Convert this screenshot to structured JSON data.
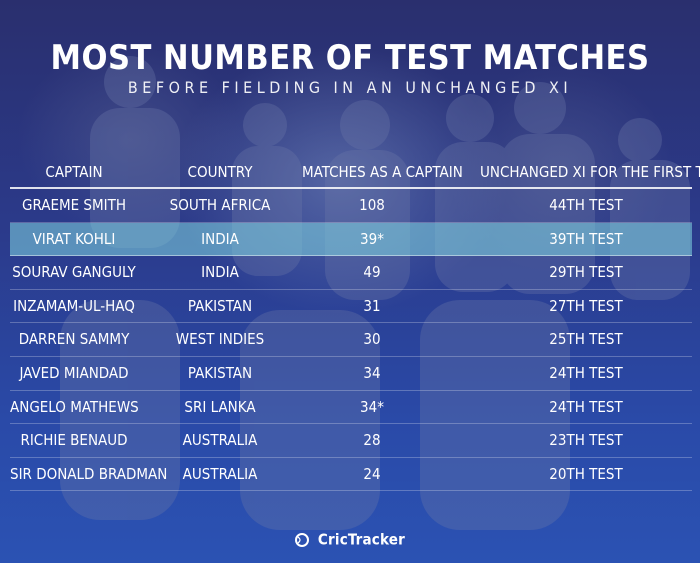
{
  "title": "MOST NUMBER OF TEST MATCHES",
  "subtitle": "BEFORE FIELDING IN AN UNCHANGED XI",
  "columns": [
    "CAPTAIN",
    "COUNTRY",
    "MATCHES AS A CAPTAIN",
    "UNCHANGED XI FOR THE FIRST TIME"
  ],
  "rows": [
    {
      "captain": "GRAEME SMITH",
      "country": "SOUTH AFRICA",
      "matches": "108",
      "unchanged": "44TH TEST"
    },
    {
      "captain": "VIRAT KOHLI",
      "country": "INDIA",
      "matches": "39*",
      "unchanged": "39TH TEST"
    },
    {
      "captain": "SOURAV GANGULY",
      "country": "INDIA",
      "matches": "49",
      "unchanged": "29TH TEST"
    },
    {
      "captain": "INZAMAM-UL-HAQ",
      "country": "PAKISTAN",
      "matches": "31",
      "unchanged": "27TH TEST"
    },
    {
      "captain": "DARREN SAMMY",
      "country": "WEST INDIES",
      "matches": "30",
      "unchanged": "25TH TEST"
    },
    {
      "captain": "JAVED MIANDAD",
      "country": "PAKISTAN",
      "matches": "34",
      "unchanged": "24TH TEST"
    },
    {
      "captain": "ANGELO MATHEWS",
      "country": "SRI LANKA",
      "matches": "34*",
      "unchanged": "24TH TEST"
    },
    {
      "captain": "RICHIE BENAUD",
      "country": "AUSTRALIA",
      "matches": "28",
      "unchanged": "23TH TEST"
    },
    {
      "captain": "SIR DONALD BRADMAN",
      "country": "AUSTRALIA",
      "matches": "24",
      "unchanged": "20TH TEST"
    }
  ],
  "highlight_row": 1,
  "logo": "CricTracker",
  "colors": {
    "background": "#2b3a8a",
    "highlight": "#82d7e1",
    "text": "#ffffff"
  }
}
